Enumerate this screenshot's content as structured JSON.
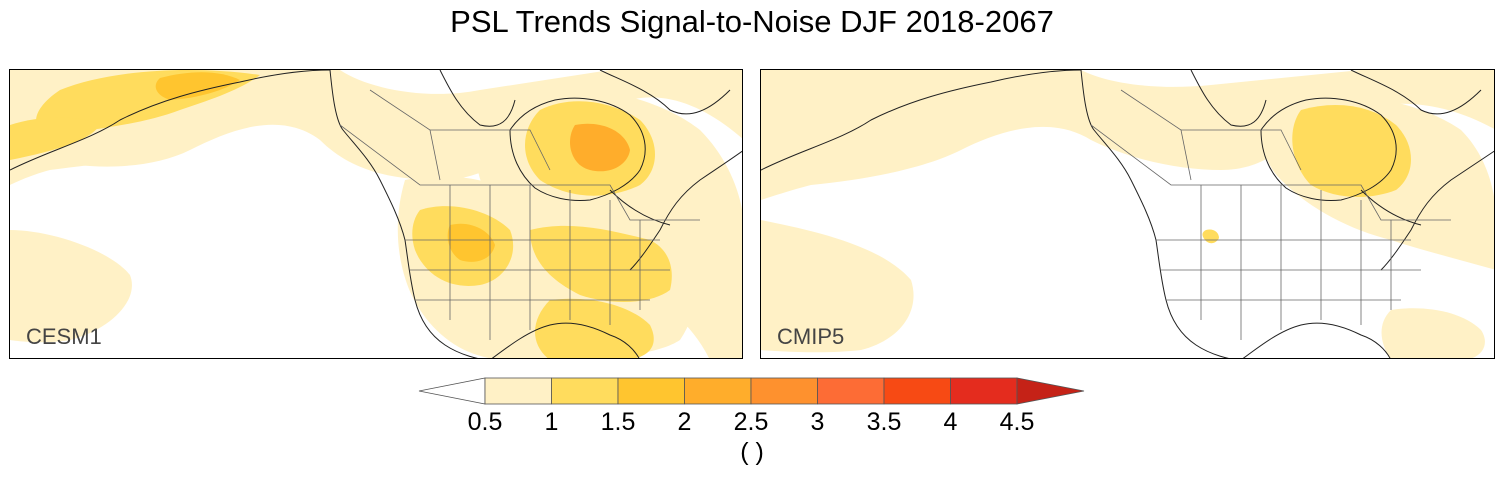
{
  "figure": {
    "title": "PSL Trends Signal-to-Noise DJF 2018-2067",
    "panels": [
      {
        "label": "CESM1",
        "model": "CESM1"
      },
      {
        "label": "CMIP5",
        "model": "CMIP5"
      }
    ]
  },
  "colorbar": {
    "ticks": [
      "0.5",
      "1",
      "1.5",
      "2",
      "2.5",
      "3",
      "3.5",
      "4",
      "4.5"
    ],
    "units": "( )",
    "colors": [
      "#ffffff",
      "#fff1c6",
      "#ffdc5d",
      "#ffc52f",
      "#ffad2b",
      "#fe912e",
      "#fd6c35",
      "#f74a14",
      "#e42c1e",
      "#c52217"
    ]
  },
  "colors": {
    "border": "#000000",
    "coast": "#222222",
    "state_lines": "#666666"
  }
}
